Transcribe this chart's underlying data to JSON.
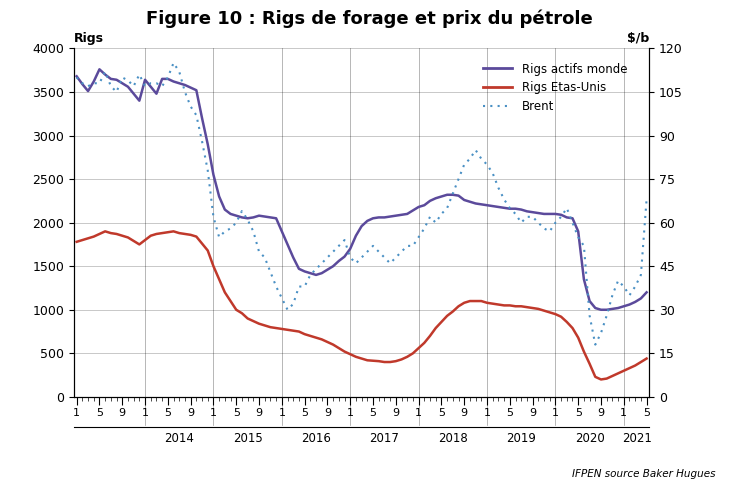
{
  "title": "Figure 10 : Rigs de forage et prix du pétrole",
  "ylabel_left": "Rigs",
  "ylabel_right": "$/b",
  "source": "IFPEN source Baker Hugues",
  "ylim_left": [
    0,
    4000
  ],
  "ylim_right": [
    0,
    120
  ],
  "yticks_left": [
    0,
    500,
    1000,
    1500,
    2000,
    2500,
    3000,
    3500,
    4000
  ],
  "yticks_right": [
    0,
    15,
    30,
    45,
    60,
    75,
    90,
    105,
    120
  ],
  "legend_rigs_monde": "Rigs actifs monde",
  "legend_rigs_us": "Rigs Etas-Unis",
  "legend_brent": "Brent",
  "color_monde": "#5b4a9b",
  "color_us": "#c0392b",
  "color_brent": "#4a90c4",
  "start_year": 2013,
  "start_month": 1,
  "n_months": 101,
  "rigs_monde": [
    3680,
    3590,
    3510,
    3620,
    3760,
    3700,
    3650,
    3640,
    3600,
    3560,
    3480,
    3400,
    3640,
    3560,
    3480,
    3650,
    3650,
    3620,
    3600,
    3580,
    3550,
    3520,
    3200,
    2900,
    2550,
    2300,
    2150,
    2100,
    2080,
    2060,
    2050,
    2060,
    2080,
    2070,
    2060,
    2050,
    1900,
    1750,
    1600,
    1470,
    1440,
    1420,
    1400,
    1420,
    1460,
    1500,
    1560,
    1610,
    1700,
    1850,
    1960,
    2020,
    2050,
    2060,
    2060,
    2070,
    2080,
    2090,
    2100,
    2140,
    2180,
    2200,
    2250,
    2280,
    2300,
    2320,
    2320,
    2310,
    2260,
    2240,
    2220,
    2210,
    2200,
    2190,
    2180,
    2170,
    2160,
    2160,
    2150,
    2130,
    2120,
    2110,
    2100,
    2100,
    2100,
    2090,
    2060,
    2050,
    1900,
    1350,
    1100,
    1020,
    1000,
    1000,
    1010,
    1020,
    1040,
    1060,
    1090,
    1130,
    1200
  ],
  "rigs_us": [
    1780,
    1800,
    1820,
    1840,
    1870,
    1900,
    1880,
    1870,
    1850,
    1830,
    1790,
    1750,
    1800,
    1850,
    1870,
    1880,
    1890,
    1900,
    1880,
    1870,
    1860,
    1840,
    1760,
    1680,
    1500,
    1350,
    1200,
    1100,
    1000,
    960,
    900,
    870,
    840,
    820,
    800,
    790,
    780,
    770,
    760,
    750,
    720,
    700,
    680,
    660,
    630,
    600,
    560,
    520,
    490,
    460,
    440,
    420,
    415,
    410,
    400,
    400,
    410,
    430,
    460,
    500,
    560,
    620,
    700,
    790,
    860,
    930,
    980,
    1040,
    1080,
    1100,
    1100,
    1100,
    1080,
    1070,
    1060,
    1050,
    1050,
    1040,
    1040,
    1030,
    1020,
    1010,
    990,
    970,
    950,
    920,
    860,
    790,
    680,
    520,
    380,
    230,
    200,
    210,
    240,
    270,
    300,
    330,
    360,
    400,
    440
  ],
  "brent": [
    110,
    108,
    107,
    108,
    108,
    112,
    107,
    105,
    110,
    109,
    107,
    111,
    107,
    108,
    108,
    107,
    110,
    115,
    112,
    105,
    100,
    97,
    88,
    78,
    62,
    55,
    57,
    58,
    60,
    64,
    61,
    57,
    50,
    48,
    43,
    38,
    34,
    30,
    32,
    38,
    38,
    42,
    44,
    46,
    48,
    50,
    52,
    54,
    48,
    46,
    48,
    50,
    52,
    50,
    48,
    46,
    48,
    50,
    52,
    52,
    55,
    58,
    62,
    60,
    63,
    65,
    70,
    75,
    80,
    82,
    85,
    82,
    80,
    77,
    72,
    68,
    65,
    63,
    60,
    62,
    62,
    60,
    58,
    57,
    60,
    62,
    65,
    60,
    55,
    52,
    28,
    18,
    22,
    28,
    35,
    40,
    38,
    35,
    38,
    42,
    68
  ],
  "year_tick_positions": [
    12,
    24,
    36,
    48,
    60,
    72,
    84,
    96
  ],
  "year_labels": [
    "2014",
    "2015",
    "2016",
    "2017",
    "2018",
    "2019",
    "2020",
    "2021"
  ]
}
